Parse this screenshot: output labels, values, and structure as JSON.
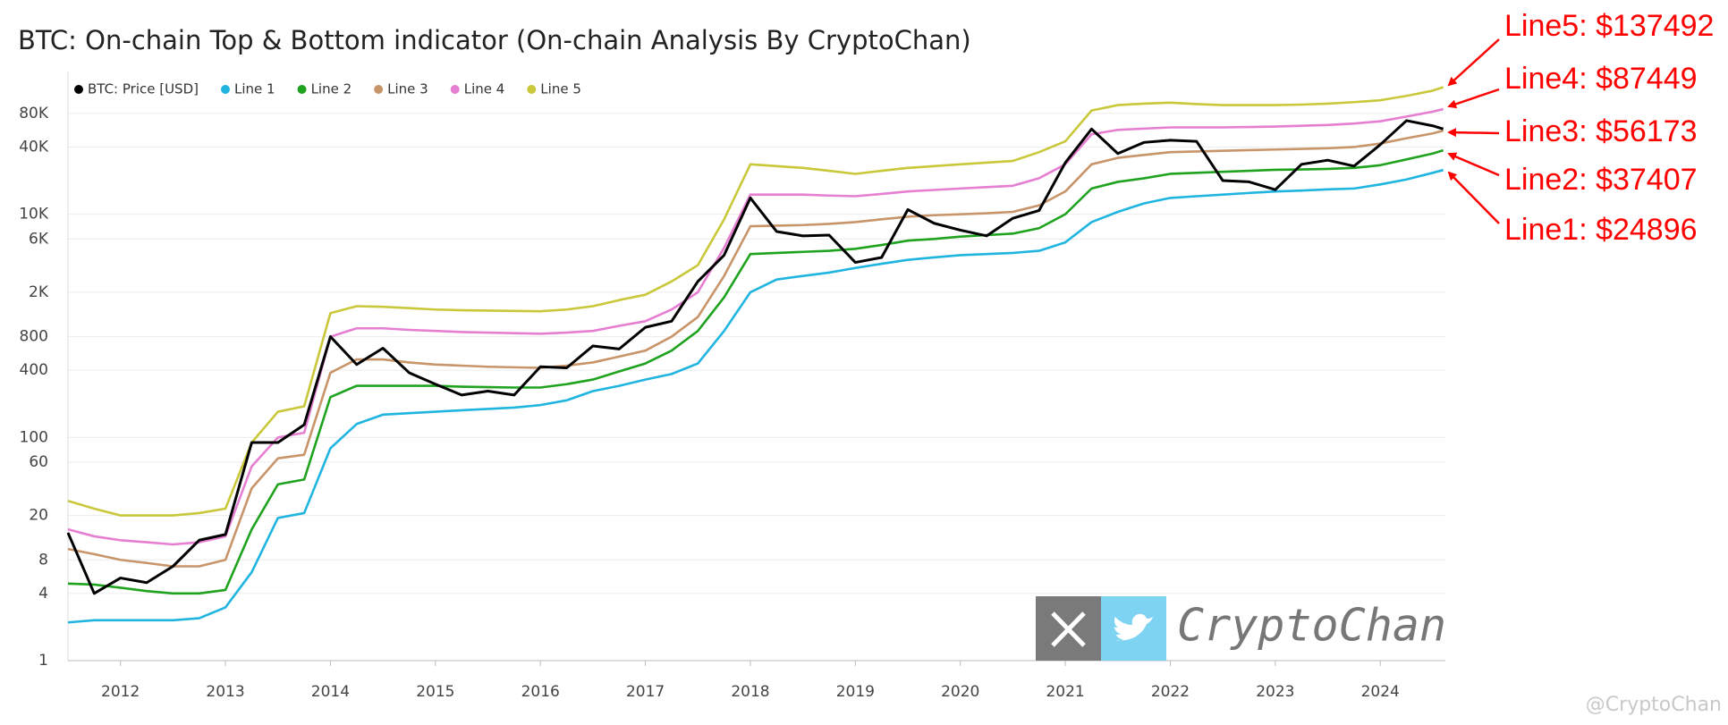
{
  "chart_data": {
    "type": "line",
    "title": "BTC: On-chain Top & Bottom indicator (On-chain Analysis By CryptoChan)",
    "log_y": true,
    "grid": true,
    "legend": "upper left",
    "x": [
      2011.5,
      2011.75,
      2012,
      2012.25,
      2012.5,
      2012.75,
      2013,
      2013.25,
      2013.5,
      2013.75,
      2014,
      2014.25,
      2014.5,
      2014.75,
      2015,
      2015.25,
      2015.5,
      2015.75,
      2016,
      2016.25,
      2016.5,
      2016.75,
      2017,
      2017.25,
      2017.5,
      2017.75,
      2018,
      2018.25,
      2018.5,
      2018.75,
      2019,
      2019.25,
      2019.5,
      2019.75,
      2020,
      2020.25,
      2020.5,
      2020.75,
      2021,
      2021.25,
      2021.5,
      2021.75,
      2022,
      2022.25,
      2022.5,
      2022.75,
      2023,
      2023.25,
      2023.5,
      2023.75,
      2024,
      2024.25,
      2024.5,
      2024.6
    ],
    "xlim": [
      2011.5,
      2024.62
    ],
    "xticks": [
      2012,
      2013,
      2014,
      2015,
      2016,
      2017,
      2018,
      2019,
      2020,
      2021,
      2022,
      2023,
      2024
    ],
    "ylim": [
      1,
      190000
    ],
    "yticks": [
      1,
      4,
      8,
      20,
      60,
      100,
      400,
      800,
      {
        "value": 2000,
        "label": "2K"
      },
      {
        "value": 6000,
        "label": "6K"
      },
      {
        "value": 10000,
        "label": "10K"
      },
      {
        "value": 40000,
        "label": "40K"
      },
      {
        "value": 80000,
        "label": "80K"
      }
    ],
    "series": [
      {
        "name": "BTC: Price [USD]",
        "color": "#000000",
        "values": [
          14,
          4,
          5.5,
          5,
          7,
          12,
          13.5,
          90,
          90,
          130,
          800,
          450,
          630,
          380,
          300,
          240,
          260,
          240,
          430,
          420,
          660,
          620,
          970,
          1100,
          2500,
          4300,
          14000,
          7000,
          6400,
          6500,
          3700,
          4100,
          11000,
          8300,
          7200,
          6400,
          9200,
          10800,
          29000,
          58000,
          35000,
          44000,
          46000,
          45000,
          20000,
          19500,
          16600,
          28000,
          30500,
          27000,
          42000,
          69000,
          62000,
          58000
        ]
      },
      {
        "name": "Line 1",
        "color": "#1fb5e0",
        "values": [
          2.2,
          2.3,
          2.3,
          2.3,
          2.3,
          2.4,
          3.0,
          6.2,
          19,
          21,
          80,
          132,
          160,
          165,
          170,
          175,
          180,
          185,
          195,
          215,
          260,
          290,
          330,
          370,
          460,
          900,
          2000,
          2600,
          2800,
          3000,
          3300,
          3600,
          3900,
          4100,
          4300,
          4400,
          4500,
          4700,
          5600,
          8500,
          10500,
          12500,
          14000,
          14500,
          15000,
          15500,
          16000,
          16300,
          16700,
          17000,
          18500,
          20500,
          23500,
          24896
        ]
      },
      {
        "name": "Line 2",
        "color": "#1fa31f",
        "values": [
          4.9,
          4.8,
          4.5,
          4.2,
          4.0,
          4.0,
          4.3,
          15,
          38,
          42,
          230,
          290,
          290,
          290,
          290,
          285,
          282,
          280,
          280,
          300,
          330,
          390,
          460,
          600,
          900,
          1800,
          4400,
          4500,
          4600,
          4700,
          4900,
          5300,
          5800,
          6000,
          6300,
          6500,
          6700,
          7500,
          10000,
          17000,
          19500,
          21000,
          23000,
          23500,
          24000,
          24500,
          25000,
          25200,
          25500,
          26000,
          27500,
          31000,
          35000,
          37407
        ]
      },
      {
        "name": "Line 3",
        "color": "#c8946a",
        "values": [
          10,
          9,
          8,
          7.5,
          7,
          7,
          8,
          35,
          65,
          70,
          380,
          500,
          500,
          470,
          450,
          440,
          430,
          425,
          420,
          440,
          470,
          530,
          600,
          800,
          1200,
          2800,
          7800,
          7900,
          8000,
          8200,
          8500,
          9000,
          9500,
          9800,
          10000,
          10200,
          10500,
          12000,
          16000,
          28000,
          32000,
          34000,
          36000,
          36500,
          37000,
          37500,
          38000,
          38500,
          39000,
          40000,
          43000,
          48000,
          53000,
          56173
        ]
      },
      {
        "name": "Line 4",
        "color": "#e67ed2",
        "values": [
          15,
          13,
          12,
          11.5,
          11,
          11.5,
          13,
          55,
          100,
          110,
          800,
          950,
          950,
          920,
          900,
          880,
          870,
          860,
          850,
          870,
          900,
          1000,
          1100,
          1400,
          2000,
          5000,
          15000,
          15000,
          15000,
          14700,
          14500,
          15200,
          16000,
          16500,
          17000,
          17500,
          18000,
          21000,
          28000,
          52000,
          57000,
          58500,
          60000,
          60000,
          60000,
          60500,
          61000,
          62000,
          63000,
          65000,
          68000,
          75000,
          83000,
          87449
        ]
      },
      {
        "name": "Line 5",
        "color": "#c9c83a",
        "values": [
          27,
          23,
          20,
          20,
          20,
          21,
          23,
          90,
          170,
          190,
          1300,
          1500,
          1480,
          1440,
          1400,
          1380,
          1370,
          1360,
          1350,
          1400,
          1500,
          1700,
          1900,
          2500,
          3500,
          9000,
          28000,
          27000,
          26000,
          24500,
          23000,
          24500,
          26000,
          27000,
          28000,
          29000,
          30000,
          36000,
          45000,
          85000,
          95000,
          98000,
          100000,
          97000,
          95000,
          95000,
          95000,
          96000,
          98000,
          101000,
          105000,
          115000,
          128000,
          137492
        ]
      }
    ],
    "annotations": [
      "Line5: $137492",
      "Line4: $87449",
      "Line3: $56173",
      "Line2: $37407",
      "Line1: $24896"
    ],
    "watermark": "CryptoChan",
    "watermark_handle": "@CryptoChan"
  }
}
